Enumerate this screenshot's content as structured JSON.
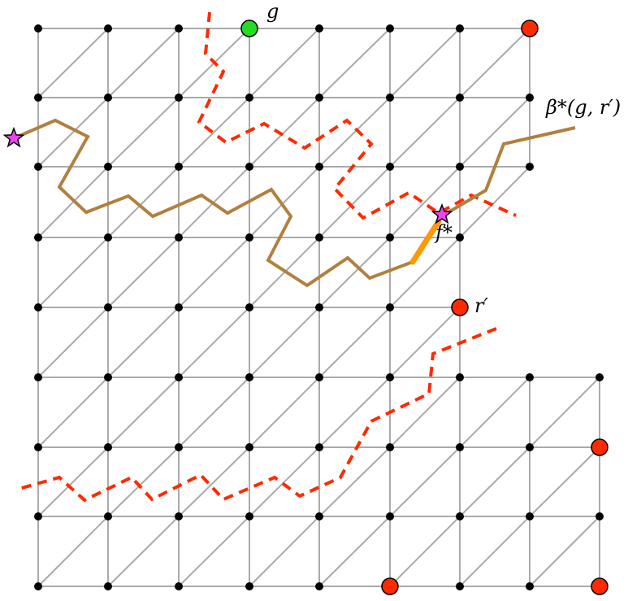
{
  "labels": {
    "g": "g",
    "beta": "β*(g, r′)",
    "f_star": "f*",
    "r_prime": "r′"
  },
  "colors": {
    "grid_edge": "#aaaaaa",
    "vertex": "#000000",
    "green_vertex": "#22dd22",
    "red_vertex": "#ff2a00",
    "dual_path_dashed": "#ff2a00",
    "beta_path": "#b08040",
    "highlight_edge": "#ff9900",
    "star": "#ee44ee"
  }
}
